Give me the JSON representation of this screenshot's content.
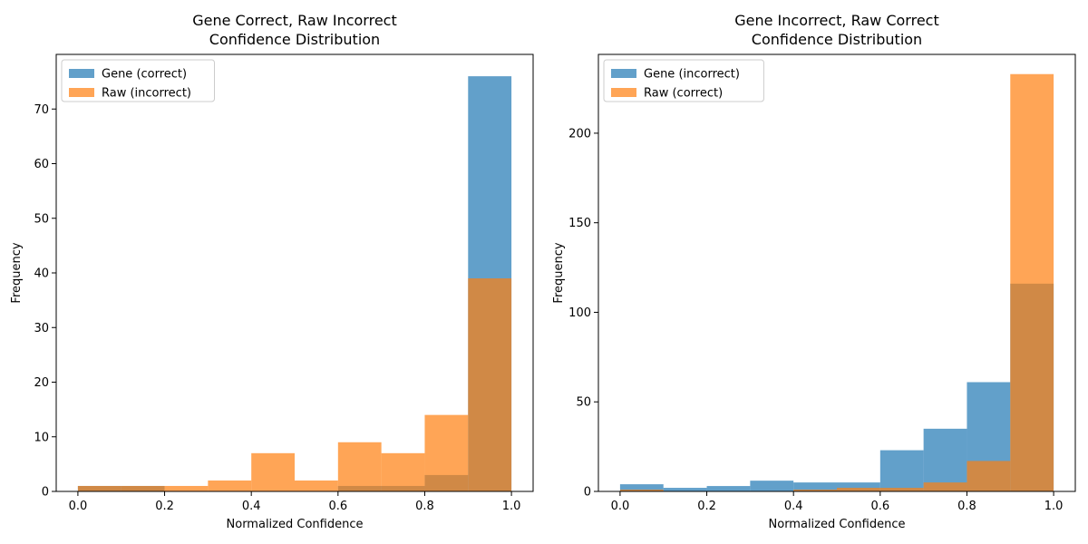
{
  "chart_data": [
    {
      "type": "bar",
      "subtype": "histogram",
      "title": "Gene Correct, Raw Incorrect\nConfidence Distribution",
      "xlabel": "Normalized Confidence",
      "ylabel": "Frequency",
      "xlim": [
        -0.05,
        1.05
      ],
      "ylim": [
        0,
        80
      ],
      "xticks": [
        0.0,
        0.2,
        0.4,
        0.6,
        0.8,
        1.0
      ],
      "yticks": [
        0,
        10,
        20,
        30,
        40,
        50,
        60,
        70
      ],
      "bin_edges": [
        0.0,
        0.1,
        0.2,
        0.3,
        0.4,
        0.5,
        0.6,
        0.7,
        0.8,
        0.9,
        1.0
      ],
      "grid": false,
      "legend_position": "top-left",
      "series": [
        {
          "name": "Gene (correct)",
          "color": "#1f77b4",
          "opacity": 0.7,
          "values": [
            1,
            1,
            0,
            0,
            0,
            0,
            1,
            1,
            3,
            76
          ]
        },
        {
          "name": "Raw (incorrect)",
          "color": "#ff7f0e",
          "opacity": 0.7,
          "values": [
            1,
            1,
            1,
            2,
            7,
            2,
            9,
            7,
            14,
            39
          ]
        }
      ]
    },
    {
      "type": "bar",
      "subtype": "histogram",
      "title": "Gene Incorrect, Raw Correct\nConfidence Distribution",
      "xlabel": "Normalized Confidence",
      "ylabel": "Frequency",
      "xlim": [
        -0.05,
        1.05
      ],
      "ylim": [
        0,
        244
      ],
      "xticks": [
        0.0,
        0.2,
        0.4,
        0.6,
        0.8,
        1.0
      ],
      "yticks": [
        0,
        50,
        100,
        150,
        200
      ],
      "bin_edges": [
        0.0,
        0.1,
        0.2,
        0.3,
        0.4,
        0.5,
        0.6,
        0.7,
        0.8,
        0.9,
        1.0
      ],
      "grid": false,
      "legend_position": "top-left",
      "series": [
        {
          "name": "Gene (incorrect)",
          "color": "#1f77b4",
          "opacity": 0.7,
          "values": [
            4,
            2,
            3,
            6,
            5,
            5,
            23,
            35,
            61,
            116
          ]
        },
        {
          "name": "Raw (correct)",
          "color": "#ff7f0e",
          "opacity": 0.7,
          "values": [
            1,
            0,
            0,
            0,
            1,
            2,
            2,
            5,
            17,
            233
          ]
        }
      ]
    }
  ]
}
